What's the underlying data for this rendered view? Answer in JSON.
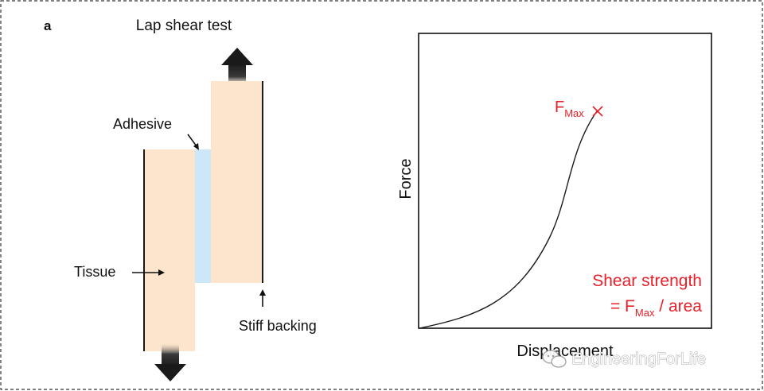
{
  "panel_label": "a",
  "title": "Lap shear test",
  "labels": {
    "adhesive": "Adhesive",
    "tissue": "Tissue",
    "stiff_backing": "Stiff backing"
  },
  "plot": {
    "ylabel": "Force",
    "xlabel": "Displacement",
    "fmax_main": "F",
    "fmax_sub": "Max",
    "fmax_marker": "×",
    "shear_line1": "Shear strength",
    "shear_line2_prefix": "= F",
    "shear_line2_sub": "Max",
    "shear_line2_suffix": " / area"
  },
  "watermark": "EngineeringForLife",
  "colors": {
    "tissue": "#fde4cc",
    "adhesive": "#cce8f8",
    "annotation_red": "#e8202a",
    "dark": "#1a1a1a"
  }
}
